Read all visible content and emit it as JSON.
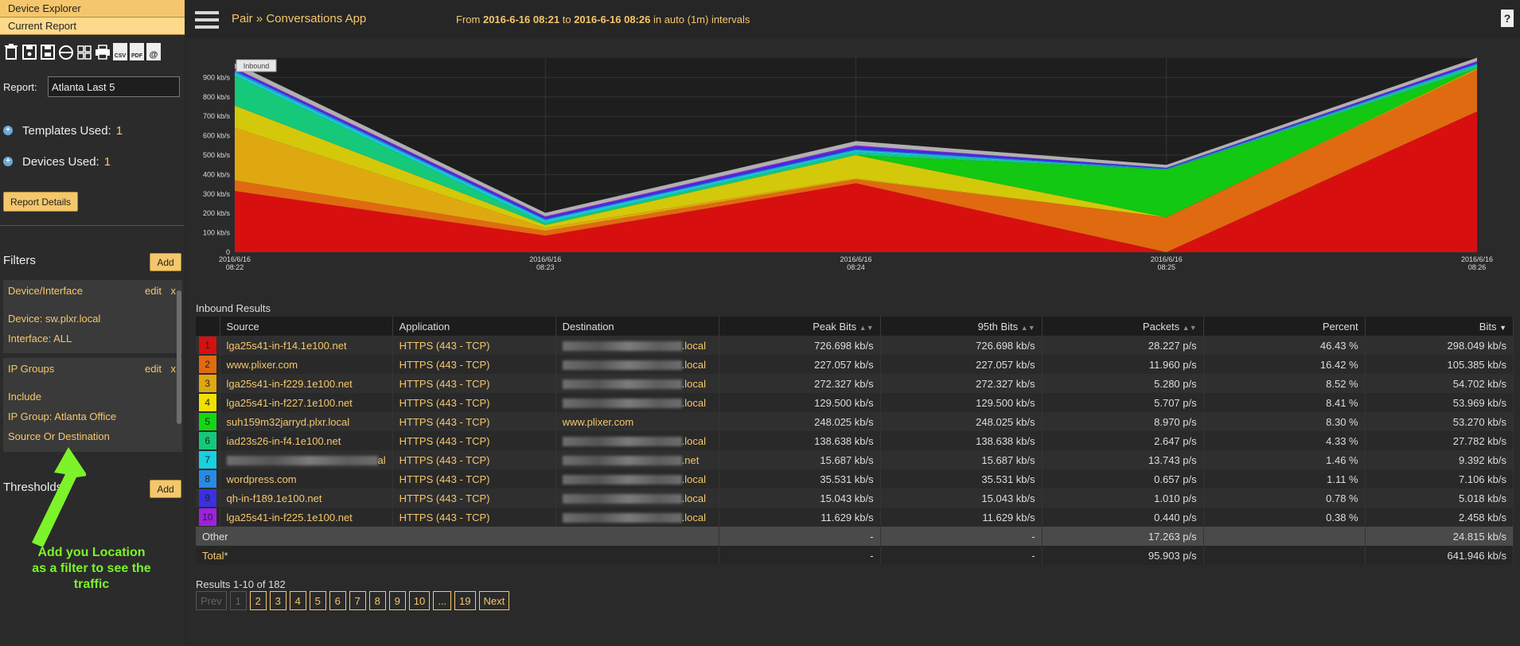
{
  "sidebar": {
    "tabs": [
      "Device Explorer",
      "Current Report"
    ],
    "toolbar_icons": [
      "trash-icon",
      "save-icon",
      "save-as-icon",
      "schedule-icon",
      "grid-icon",
      "print-icon",
      "csv-icon",
      "pdf-icon",
      "email-icon"
    ],
    "csv_label": "CSV",
    "pdf_label": "PDF",
    "email_label": "@",
    "report_label": "Report:",
    "report_value": "Atlanta Last 5",
    "templates_label": "Templates Used:",
    "templates_count": "1",
    "devices_label": "Devices Used:",
    "devices_count": "1",
    "report_details_label": "Report Details",
    "filters_title": "Filters",
    "add_label": "Add",
    "filter_boxes": [
      {
        "title": "Device/Interface",
        "edit": "edit",
        "close": "x",
        "lines": [
          "Device: sw.plxr.local",
          "Interface: ALL"
        ]
      },
      {
        "title": "IP Groups",
        "edit": "edit",
        "close": "x",
        "lines": [
          "Include",
          "IP Group: Atlanta Office",
          "Source Or Destination"
        ]
      }
    ],
    "thresholds_title": "Thresholds",
    "callout": "Add you Location as a filter to see the traffic"
  },
  "header": {
    "title": "Pair » Conversations App",
    "range_from_label": "From",
    "range_from": "2016-6-16 08:21",
    "range_to_label": "to",
    "range_to": "2016-6-16 08:26",
    "range_suffix": "in auto (1m) intervals",
    "help": "?"
  },
  "chart_data": {
    "type": "area",
    "stacked": true,
    "legend_label": "Inbound",
    "x": [
      "2016/6/16 08:22",
      "2016/6/16 08:23",
      "2016/6/16 08:24",
      "2016/6/16 08:25",
      "2016/6/16 08:26"
    ],
    "y_ticks": [
      "0",
      "100 kb/s",
      "200 kb/s",
      "300 kb/s",
      "400 kb/s",
      "500 kb/s",
      "600 kb/s",
      "700 kb/s",
      "800 kb/s",
      "900 kb/s"
    ],
    "ylim": [
      0,
      1000
    ],
    "series": [
      {
        "color": "#d80f0f",
        "values": [
          315,
          85,
          355,
          0,
          725
        ]
      },
      {
        "color": "#e06a10",
        "values": [
          55,
          25,
          20,
          180,
          215
        ]
      },
      {
        "color": "#e0a810",
        "values": [
          270,
          15,
          5,
          0,
          5
        ]
      },
      {
        "color": "#d4c80a",
        "values": [
          115,
          15,
          120,
          0,
          2
        ]
      },
      {
        "color": "#12c812",
        "values": [
          0,
          0,
          0,
          245,
          0
        ]
      },
      {
        "color": "#16c87a",
        "values": [
          155,
          10,
          15,
          0,
          15
        ]
      },
      {
        "color": "#18c8d4",
        "values": [
          15,
          15,
          10,
          0,
          5
        ]
      },
      {
        "color": "#2a8ae0",
        "values": [
          10,
          5,
          5,
          5,
          5
        ]
      },
      {
        "color": "#3a30e0",
        "values": [
          8,
          10,
          15,
          5,
          8
        ]
      },
      {
        "color": "#a020e0",
        "values": [
          5,
          5,
          5,
          0,
          4
        ]
      },
      {
        "color": "#b0b0b0",
        "values": [
          25,
          18,
          22,
          15,
          18
        ]
      }
    ]
  },
  "results": {
    "title": "Inbound Results",
    "columns": [
      "Source",
      "Application",
      "Destination",
      "Peak Bits",
      "95th Bits",
      "Packets",
      "Percent",
      "Bits"
    ],
    "rows": [
      {
        "rank": "1",
        "color": "#d80f0f",
        "source": "lga25s41-in-f14.1e100.net",
        "app": "HTTPS (443 - TCP)",
        "dest": ".local",
        "peak": "726.698 kb/s",
        "p95": "726.698 kb/s",
        "packets": "28.227 p/s",
        "percent": "46.43 %",
        "bits": "298.049 kb/s"
      },
      {
        "rank": "2",
        "color": "#e06a10",
        "source": "www.plixer.com",
        "app": "HTTPS (443 - TCP)",
        "dest": ".local",
        "peak": "227.057 kb/s",
        "p95": "227.057 kb/s",
        "packets": "11.960 p/s",
        "percent": "16.42 %",
        "bits": "105.385 kb/s"
      },
      {
        "rank": "3",
        "color": "#e0a810",
        "source": "lga25s41-in-f229.1e100.net",
        "app": "HTTPS (443 - TCP)",
        "dest": ".local",
        "peak": "272.327 kb/s",
        "p95": "272.327 kb/s",
        "packets": "5.280 p/s",
        "percent": "8.52 %",
        "bits": "54.702 kb/s"
      },
      {
        "rank": "4",
        "color": "#f0e000",
        "source": "lga25s41-in-f227.1e100.net",
        "app": "HTTPS (443 - TCP)",
        "dest": ".local",
        "peak": "129.500 kb/s",
        "p95": "129.500 kb/s",
        "packets": "5.707 p/s",
        "percent": "8.41 %",
        "bits": "53.969 kb/s"
      },
      {
        "rank": "5",
        "color": "#12d812",
        "source": "suh159m32jarryd.plxr.local",
        "app": "HTTPS (443 - TCP)",
        "dest": "www.plixer.com",
        "peak": "248.025 kb/s",
        "p95": "248.025 kb/s",
        "packets": "8.970 p/s",
        "percent": "8.30 %",
        "bits": "53.270 kb/s"
      },
      {
        "rank": "6",
        "color": "#16c87a",
        "source": "iad23s26-in-f4.1e100.net",
        "app": "HTTPS (443 - TCP)",
        "dest": ".local",
        "peak": "138.638 kb/s",
        "p95": "138.638 kb/s",
        "packets": "2.647 p/s",
        "percent": "4.33 %",
        "bits": "27.782 kb/s"
      },
      {
        "rank": "7",
        "color": "#18d0e0",
        "source": "al",
        "app": "HTTPS (443 - TCP)",
        "dest": ".net",
        "peak": "15.687 kb/s",
        "p95": "15.687 kb/s",
        "packets": "13.743 p/s",
        "percent": "1.46 %",
        "bits": "9.392 kb/s"
      },
      {
        "rank": "8",
        "color": "#2a8ae0",
        "source": "wordpress.com",
        "app": "HTTPS (443 - TCP)",
        "dest": ".local",
        "peak": "35.531 kb/s",
        "p95": "35.531 kb/s",
        "packets": "0.657 p/s",
        "percent": "1.11 %",
        "bits": "7.106 kb/s"
      },
      {
        "rank": "9",
        "color": "#3a30e0",
        "source": "qh-in-f189.1e100.net",
        "app": "HTTPS (443 - TCP)",
        "dest": ".local",
        "peak": "15.043 kb/s",
        "p95": "15.043 kb/s",
        "packets": "1.010 p/s",
        "percent": "0.78 %",
        "bits": "5.018 kb/s"
      },
      {
        "rank": "10",
        "color": "#a020e0",
        "source": "lga25s41-in-f225.1e100.net",
        "app": "HTTPS (443 - TCP)",
        "dest": ".local",
        "peak": "11.629 kb/s",
        "p95": "11.629 kb/s",
        "packets": "0.440 p/s",
        "percent": "0.38 %",
        "bits": "2.458 kb/s"
      }
    ],
    "other": {
      "label": "Other",
      "peak": "-",
      "p95": "-",
      "packets": "17.263 p/s",
      "bits": "24.815 kb/s"
    },
    "total": {
      "label": "Total*",
      "peak": "-",
      "p95": "-",
      "packets": "95.903 p/s",
      "bits": "641.946 kb/s"
    },
    "count_text": "Results 1-10 of 182",
    "pager": [
      "Prev",
      "1",
      "2",
      "3",
      "4",
      "5",
      "6",
      "7",
      "8",
      "9",
      "10",
      "...",
      "19",
      "Next"
    ]
  }
}
